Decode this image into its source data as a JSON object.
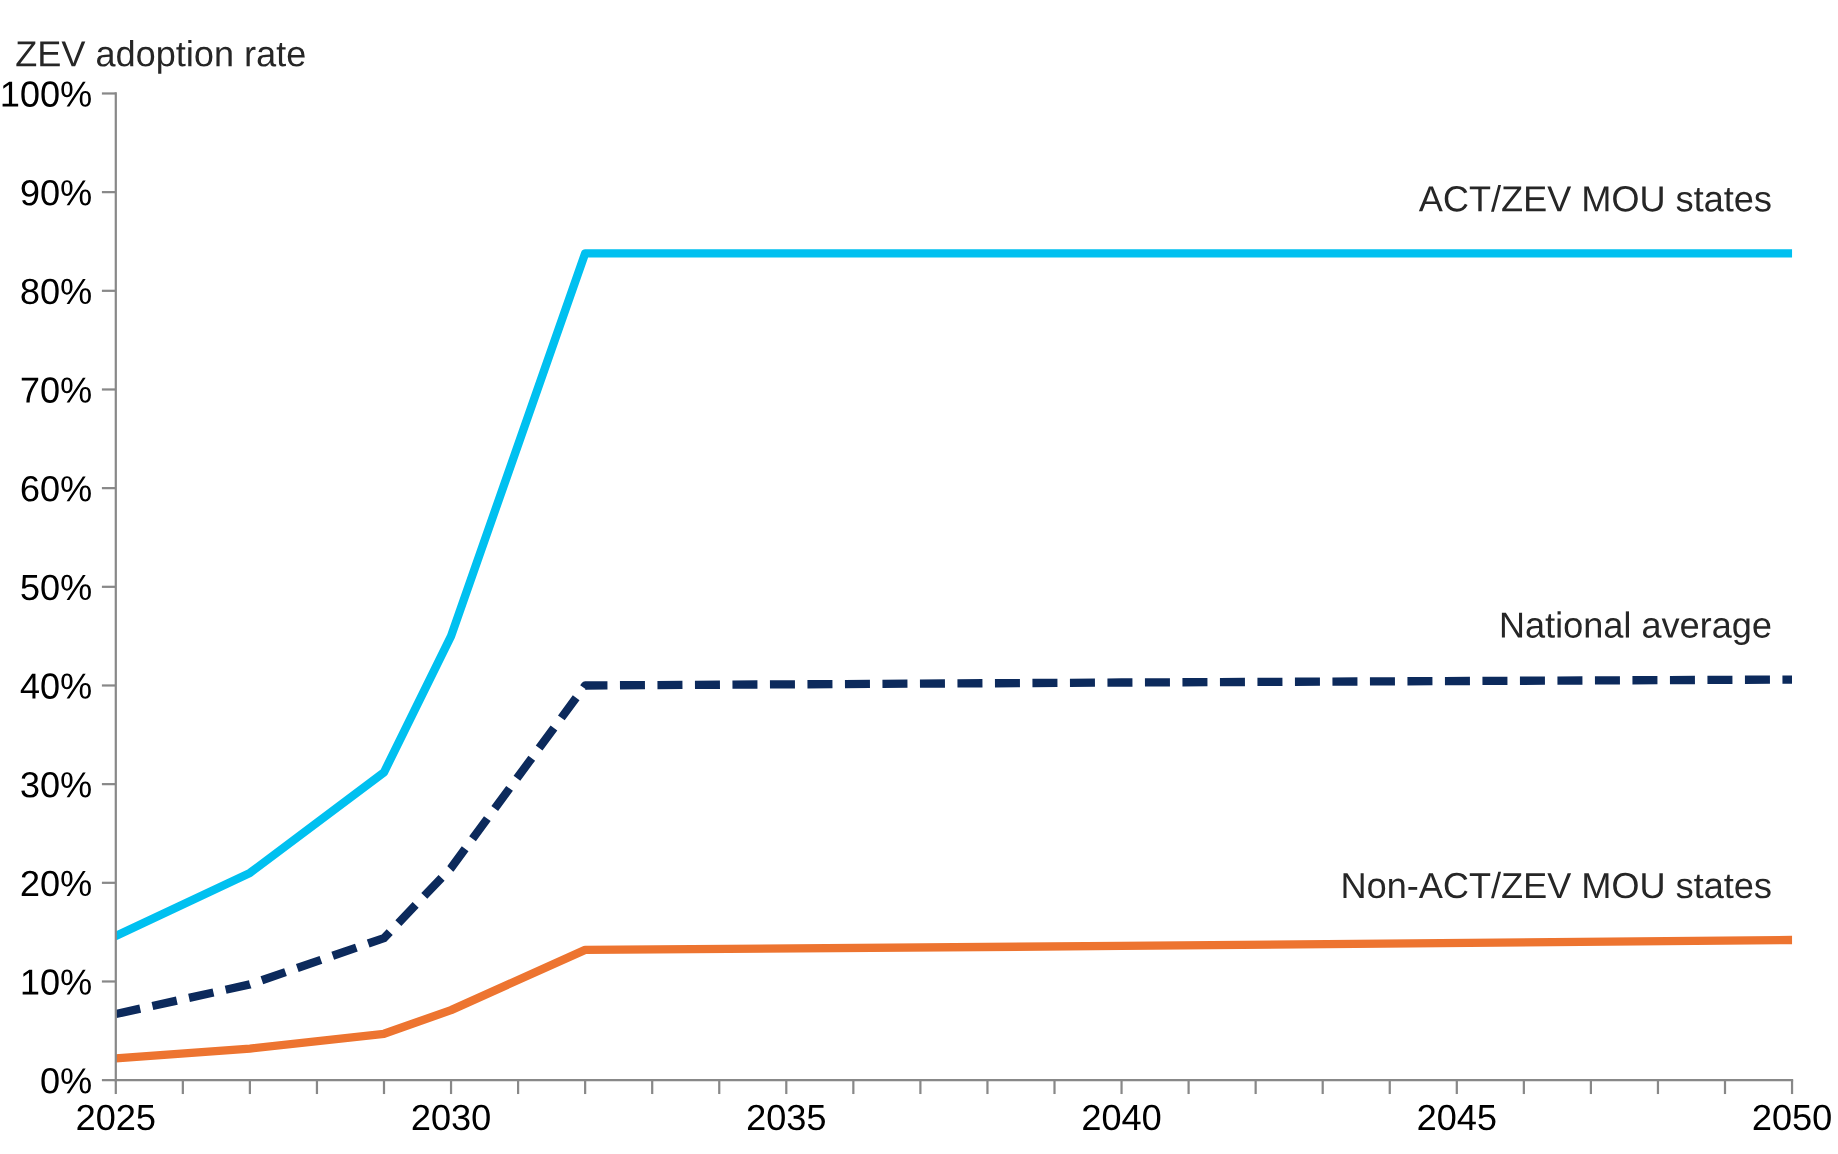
{
  "chart_data": {
    "type": "line",
    "ylabel": "ZEV adoption rate",
    "x": [
      2025,
      2027,
      2029,
      2030,
      2032,
      2040,
      2050
    ],
    "series": [
      {
        "name": "ACT/ZEV MOU states",
        "color": "#00c0f0",
        "values": [
          14.6,
          21,
          31.2,
          45,
          83.8,
          83.8,
          83.8
        ]
      },
      {
        "name": "National average",
        "color": "#0c2a5c",
        "line_style": "dashed",
        "values": [
          6.7,
          9.7,
          14.4,
          21.5,
          40,
          40.3,
          40.6
        ]
      },
      {
        "name": "Non-ACT/ZEV MOU states",
        "color": "#ed7430",
        "values": [
          2.2,
          3.2,
          4.7,
          7.1,
          13.2,
          13.6,
          14.2
        ]
      }
    ],
    "xlim": [
      2025,
      2050
    ],
    "xticks": [
      2025,
      {
        "value": 2026,
        "label": null
      },
      {
        "value": 2027,
        "label": null
      },
      {
        "value": 2028,
        "label": null
      },
      {
        "value": 2029,
        "label": null
      },
      2030,
      {
        "value": 2031,
        "label": null
      },
      {
        "value": 2032,
        "label": null
      },
      {
        "value": 2033,
        "label": null
      },
      {
        "value": 2034,
        "label": null
      },
      2035,
      {
        "value": 2036,
        "label": null
      },
      {
        "value": 2037,
        "label": null
      },
      {
        "value": 2038,
        "label": null
      },
      {
        "value": 2039,
        "label": null
      },
      2040,
      {
        "value": 2041,
        "label": null
      },
      {
        "value": 2042,
        "label": null
      },
      {
        "value": 2043,
        "label": null
      },
      {
        "value": 2044,
        "label": null
      },
      2045,
      {
        "value": 2046,
        "label": null
      },
      {
        "value": 2047,
        "label": null
      },
      {
        "value": 2048,
        "label": null
      },
      {
        "value": 2049,
        "label": null
      },
      2050
    ],
    "ylim": [
      0,
      100
    ],
    "yticks": [
      {
        "value": 0,
        "label": "0%"
      },
      {
        "value": 10,
        "label": "10%"
      },
      {
        "value": 20,
        "label": "20%"
      },
      {
        "value": 30,
        "label": "30%"
      },
      {
        "value": 40,
        "label": "40%"
      },
      {
        "value": 50,
        "label": "50%"
      },
      {
        "value": 60,
        "label": "60%"
      },
      {
        "value": 70,
        "label": "70%"
      },
      {
        "value": 80,
        "label": "80%"
      },
      {
        "value": 90,
        "label": "90%"
      },
      {
        "value": 100,
        "label": "100%"
      }
    ],
    "grid": false,
    "legend": false,
    "marker": "none"
  }
}
